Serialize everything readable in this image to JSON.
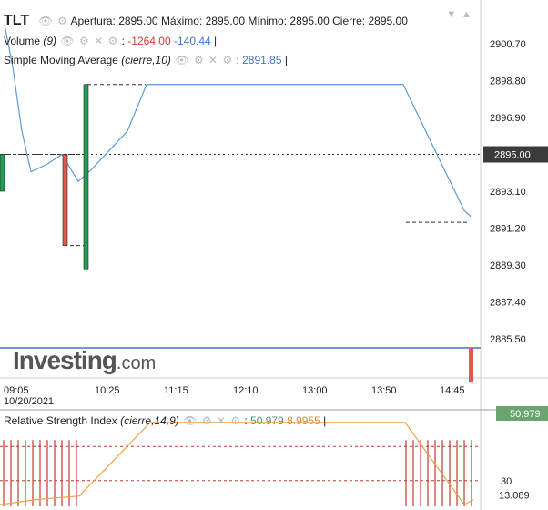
{
  "header": {
    "symbol": "TLT",
    "apertura_label": "Apertura:",
    "apertura": "2895.00",
    "maximo_label": "Máximo:",
    "maximo": "2895.00",
    "minimo_label": "Mínimo:",
    "minimo": "2895.00",
    "cierre_label": "Cierre:",
    "cierre": "2895.00"
  },
  "volume_legend": {
    "label": "Volume",
    "params": "(9)",
    "value1": "-1264.00",
    "value2": "-140.44"
  },
  "sma_legend": {
    "label": "Simple Moving Average",
    "params": "(cierre,10)",
    "value": "2891.85"
  },
  "rsi_legend": {
    "label": "Relative Strength Index",
    "params": "(cierre,14,9)",
    "value1": "50.979",
    "value2": "8.9955"
  },
  "logo": {
    "text": "Investing",
    "suffix": ".com"
  },
  "colors": {
    "up": "#1f9e55",
    "down": "#e0594f",
    "sma": "#5b9bd5",
    "rsi_line": "#f0a050",
    "rsi_bar": "#c0392b"
  },
  "chart_data": [
    {
      "type": "candlestick",
      "y_ticks": [
        "2900.70",
        "2898.80",
        "2896.90",
        "2895.00",
        "2893.10",
        "2891.20",
        "2889.30",
        "2887.40",
        "2885.50"
      ],
      "x_ticks": [
        "09:05",
        "10:25",
        "11:15",
        "12:10",
        "13:00",
        "13:50",
        "14:45"
      ],
      "date_label": "10/20/2021",
      "ylim": [
        2885.5,
        2900.7
      ],
      "current_price": "2895.00",
      "candles": [
        {
          "x": 0,
          "open": 2893.1,
          "close": 2895.0,
          "high": 2895.0,
          "low": 2893.1
        },
        {
          "x": 69,
          "open": 2895.0,
          "close": 2890.3,
          "high": 2895.0,
          "low": 2890.3
        },
        {
          "x": 92,
          "open": 2889.1,
          "close": 2898.6,
          "high": 2898.6,
          "low": 2886.5
        }
      ],
      "sma": [
        {
          "x": 5,
          "y": 2901.7
        },
        {
          "x": 14,
          "y": 2899.5
        },
        {
          "x": 24,
          "y": 2896.2
        },
        {
          "x": 34,
          "y": 2894.1
        },
        {
          "x": 52,
          "y": 2894.5
        },
        {
          "x": 68,
          "y": 2895.0
        },
        {
          "x": 86,
          "y": 2893.6
        },
        {
          "x": 100,
          "y": 2894.2
        },
        {
          "x": 140,
          "y": 2896.2
        },
        {
          "x": 161,
          "y": 2898.6
        },
        {
          "x": 443,
          "y": 2898.6
        },
        {
          "x": 480,
          "y": 2895.0
        },
        {
          "x": 510,
          "y": 2892.1
        },
        {
          "x": 517,
          "y": 2891.8
        }
      ],
      "dashed_levels": [
        {
          "x1": 0,
          "x2": 92,
          "y": 2895.0
        },
        {
          "x1": 70,
          "x2": 92,
          "y": 2890.3
        },
        {
          "x1": 96,
          "x2": 160,
          "y": 2898.6
        },
        {
          "x1": 446,
          "x2": 514,
          "y": 2891.5
        }
      ]
    },
    {
      "type": "line",
      "name": "Relative Strength Index",
      "y_ticks": [
        "30",
        "13.089"
      ],
      "current_value": "50.979",
      "ylim": [
        0,
        100
      ],
      "levels": [
        70,
        30
      ],
      "line": [
        {
          "x": 0,
          "y": 2
        },
        {
          "x": 40,
          "y": 8
        },
        {
          "x": 87,
          "y": 12
        },
        {
          "x": 165,
          "y": 98
        },
        {
          "x": 445,
          "y": 98
        },
        {
          "x": 510,
          "y": 2
        },
        {
          "x": 520,
          "y": 8
        }
      ],
      "bars_x": [
        4,
        12,
        20,
        28,
        36,
        44,
        52,
        60,
        68,
        76,
        84,
        446,
        454,
        462,
        470,
        478,
        486,
        494,
        502,
        510,
        518
      ]
    }
  ]
}
